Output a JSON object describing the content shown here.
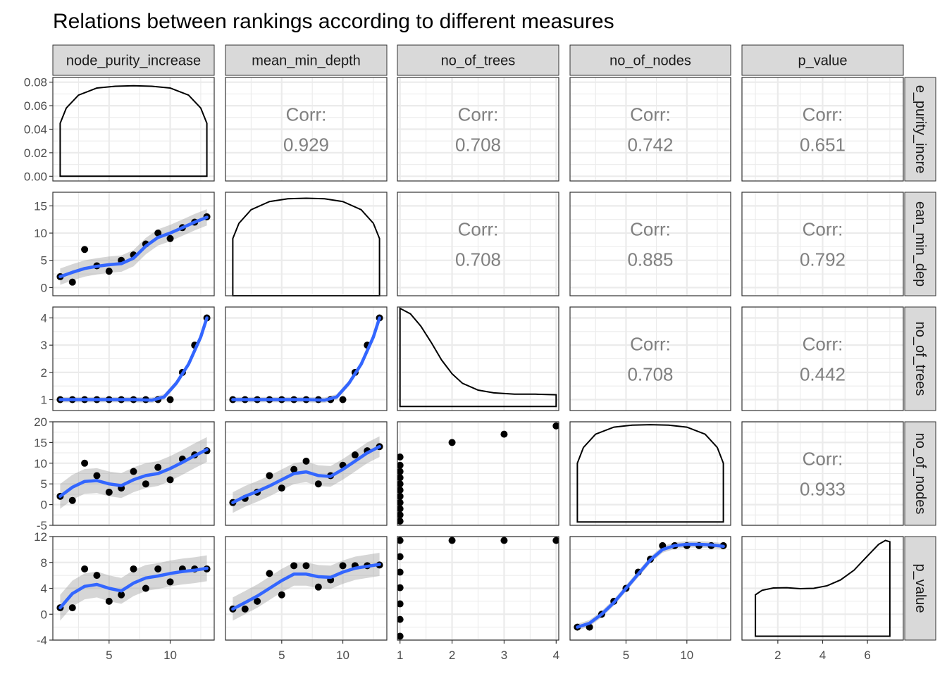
{
  "title": "Relations between rankings according to different measures",
  "chart_data": {
    "type": "scatter",
    "layout": "pairs-matrix",
    "variables": [
      "node_purity_increase",
      "mean_min_depth",
      "no_of_trees",
      "no_of_nodes",
      "p_value"
    ],
    "strip_labels": {
      "columns": [
        "node_purity_increase",
        "mean_min_depth",
        "no_of_trees",
        "no_of_nodes",
        "p_value"
      ],
      "rows": [
        "e_purity_incre",
        "ean_min_dep",
        "no_of_trees",
        "no_of_nodes",
        "p_value"
      ]
    },
    "corr_label": "Corr:",
    "correlations": [
      {
        "row": 0,
        "col": 1,
        "value": "0.929"
      },
      {
        "row": 0,
        "col": 2,
        "value": "0.708"
      },
      {
        "row": 0,
        "col": 3,
        "value": "0.742"
      },
      {
        "row": 0,
        "col": 4,
        "value": "0.651"
      },
      {
        "row": 1,
        "col": 2,
        "value": "0.708"
      },
      {
        "row": 1,
        "col": 3,
        "value": "0.885"
      },
      {
        "row": 1,
        "col": 4,
        "value": "0.792"
      },
      {
        "row": 2,
        "col": 3,
        "value": "0.708"
      },
      {
        "row": 2,
        "col": 4,
        "value": "0.442"
      },
      {
        "row": 3,
        "col": 4,
        "value": "0.933"
      }
    ],
    "x_ranges": [
      [
        0.4,
        13.6
      ],
      [
        0.4,
        13.6
      ],
      [
        0.95,
        4.05
      ],
      [
        0.4,
        13.6
      ],
      [
        0.4,
        7.6
      ]
    ],
    "x_breaks": [
      [
        5,
        10
      ],
      [
        5,
        10
      ],
      [
        1,
        2,
        3,
        4
      ],
      [
        5,
        10
      ],
      [
        2,
        4,
        6
      ]
    ],
    "x_tick_labels": [
      [
        "5",
        "10"
      ],
      [
        "5",
        "10"
      ],
      [
        "1",
        "2",
        "3",
        "4"
      ],
      [
        "5",
        "10"
      ],
      [
        "2",
        "4",
        "6"
      ]
    ],
    "y_ranges": [
      [
        -0.004,
        0.084
      ],
      [
        -1.5,
        17.5
      ],
      [
        0.6,
        4.4
      ],
      [
        -5,
        20
      ],
      [
        -4,
        12
      ]
    ],
    "y_breaks": [
      [
        0,
        0.02,
        0.04,
        0.06,
        0.08
      ],
      [
        0,
        5,
        10,
        15
      ],
      [
        1,
        2,
        3,
        4
      ],
      [
        -5,
        0,
        5,
        10,
        15,
        20
      ],
      [
        -4,
        0,
        4,
        8,
        12
      ]
    ],
    "y_tick_labels": [
      [
        "0.00",
        "0.02",
        "0.04",
        "0.06",
        "0.08"
      ],
      [
        "0",
        "5",
        "10",
        "15"
      ],
      [
        "1",
        "2",
        "3",
        "4"
      ],
      [
        "-5",
        "0",
        "5",
        "10",
        "15",
        "20"
      ],
      [
        "-4",
        "0",
        "4",
        "8",
        "12"
      ]
    ],
    "densities": [
      {
        "var": 0,
        "x": [
          1,
          1.5,
          2.5,
          4,
          5.5,
          7,
          8.5,
          10,
          11.5,
          12.5,
          13
        ],
        "y": [
          0.045,
          0.058,
          0.069,
          0.075,
          0.0765,
          0.077,
          0.0765,
          0.075,
          0.069,
          0.058,
          0.045
        ],
        "baseline": 0
      },
      {
        "var": 1,
        "x": [
          1,
          1.5,
          2.5,
          4,
          5.5,
          7,
          8.5,
          10,
          11.5,
          12.5,
          13
        ],
        "y": [
          9,
          11.8,
          14.3,
          15.8,
          16.3,
          16.4,
          16.3,
          15.8,
          14.3,
          11.8,
          9
        ],
        "baseline": -1.5
      },
      {
        "var": 2,
        "x": [
          1,
          1.2,
          1.4,
          1.6,
          1.8,
          2,
          2.2,
          2.5,
          2.8,
          3.2,
          3.6,
          4
        ],
        "y": [
          4.35,
          4.15,
          3.7,
          3.1,
          2.45,
          1.95,
          1.6,
          1.35,
          1.25,
          1.2,
          1.2,
          1.18
        ],
        "baseline": 0.75
      },
      {
        "var": 3,
        "x": [
          1,
          1.5,
          2.5,
          4,
          5.5,
          7,
          8.5,
          10,
          11.5,
          12.5,
          13
        ],
        "y": [
          10,
          13.8,
          17,
          18.7,
          19.2,
          19.3,
          19.2,
          18.7,
          17,
          13.8,
          10
        ],
        "baseline": -4.2
      },
      {
        "var": 4,
        "x": [
          1,
          1.3,
          1.8,
          2.4,
          3,
          3.6,
          4.2,
          4.8,
          5.4,
          6,
          6.5,
          6.8,
          7
        ],
        "y": [
          3,
          3.7,
          4.05,
          4.1,
          3.95,
          4.0,
          4.4,
          5.3,
          6.8,
          9.0,
          10.8,
          11.4,
          11.2
        ],
        "baseline": -3.4
      }
    ],
    "scatter_panels": [
      {
        "row": 1,
        "col": 0,
        "points": [
          [
            1,
            2
          ],
          [
            2,
            1
          ],
          [
            3,
            7
          ],
          [
            4,
            4
          ],
          [
            5,
            3
          ],
          [
            6,
            5
          ],
          [
            7,
            6
          ],
          [
            8,
            8
          ],
          [
            9,
            10
          ],
          [
            10,
            9
          ],
          [
            11,
            11
          ],
          [
            12,
            12
          ],
          [
            13,
            13
          ]
        ],
        "smooth": [
          [
            1,
            2
          ],
          [
            2,
            2.8
          ],
          [
            3,
            3.5
          ],
          [
            4,
            3.9
          ],
          [
            5,
            4.2
          ],
          [
            6,
            4.4
          ],
          [
            7,
            5.4
          ],
          [
            8,
            7.6
          ],
          [
            9,
            9.2
          ],
          [
            10,
            10
          ],
          [
            11,
            11
          ],
          [
            12,
            12
          ],
          [
            13,
            12.9
          ]
        ],
        "band": 1.5
      },
      {
        "row": 2,
        "col": 0,
        "points": [
          [
            1,
            1
          ],
          [
            2,
            1
          ],
          [
            3,
            1
          ],
          [
            4,
            1
          ],
          [
            5,
            1
          ],
          [
            6,
            1
          ],
          [
            7,
            1
          ],
          [
            8,
            1
          ],
          [
            9,
            1
          ],
          [
            10,
            1
          ],
          [
            11,
            2
          ],
          [
            12,
            3
          ],
          [
            13,
            4
          ]
        ],
        "smooth": [
          [
            1,
            1
          ],
          [
            3,
            1
          ],
          [
            5,
            1
          ],
          [
            7,
            1
          ],
          [
            8.5,
            0.98
          ],
          [
            9.5,
            1.1
          ],
          [
            10.5,
            1.6
          ],
          [
            11.5,
            2.3
          ],
          [
            12.5,
            3.3
          ],
          [
            13,
            4
          ]
        ],
        "band": 0.1
      },
      {
        "row": 2,
        "col": 1,
        "points": [
          [
            1,
            1
          ],
          [
            2,
            1
          ],
          [
            3,
            1
          ],
          [
            4,
            1
          ],
          [
            5,
            1
          ],
          [
            6,
            1
          ],
          [
            7,
            1
          ],
          [
            8,
            1
          ],
          [
            9,
            1
          ],
          [
            10,
            1
          ],
          [
            11,
            2
          ],
          [
            12,
            3
          ],
          [
            13,
            4
          ]
        ],
        "smooth": [
          [
            1,
            1
          ],
          [
            3,
            1
          ],
          [
            5,
            1
          ],
          [
            7,
            1
          ],
          [
            8.5,
            0.98
          ],
          [
            9.5,
            1.1
          ],
          [
            10.5,
            1.6
          ],
          [
            11.5,
            2.3
          ],
          [
            12.5,
            3.3
          ],
          [
            13,
            4
          ]
        ],
        "band": 0.1
      },
      {
        "row": 3,
        "col": 0,
        "points": [
          [
            1,
            2
          ],
          [
            2,
            1
          ],
          [
            3,
            10
          ],
          [
            4,
            7
          ],
          [
            5,
            3
          ],
          [
            6,
            4
          ],
          [
            7,
            8
          ],
          [
            8,
            5
          ],
          [
            9,
            9
          ],
          [
            10,
            6
          ],
          [
            11,
            11
          ],
          [
            12,
            12
          ],
          [
            13,
            13
          ]
        ],
        "smooth": [
          [
            1,
            2
          ],
          [
            2,
            4.2
          ],
          [
            3,
            5.6
          ],
          [
            4,
            5.8
          ],
          [
            5,
            5
          ],
          [
            6,
            4.6
          ],
          [
            7,
            6
          ],
          [
            8,
            7
          ],
          [
            9,
            7.5
          ],
          [
            10,
            8.7
          ],
          [
            11,
            10.2
          ],
          [
            12,
            11.8
          ],
          [
            13,
            13.3
          ]
        ],
        "band": 3
      },
      {
        "row": 3,
        "col": 1,
        "points": [
          [
            1,
            0.5
          ],
          [
            2,
            1.5
          ],
          [
            3,
            3
          ],
          [
            4,
            7
          ],
          [
            5,
            4
          ],
          [
            6,
            8.5
          ],
          [
            7,
            10.5
          ],
          [
            8,
            5
          ],
          [
            9,
            7
          ],
          [
            10,
            9.5
          ],
          [
            11,
            12
          ],
          [
            12,
            13
          ],
          [
            13,
            14
          ]
        ],
        "smooth": [
          [
            1,
            0.5
          ],
          [
            2,
            2
          ],
          [
            3,
            3.2
          ],
          [
            4,
            4.5
          ],
          [
            5,
            6
          ],
          [
            6,
            7.5
          ],
          [
            7,
            7.9
          ],
          [
            8,
            7
          ],
          [
            9,
            6.8
          ],
          [
            10,
            8.5
          ],
          [
            11,
            10.5
          ],
          [
            12,
            12.5
          ],
          [
            13,
            14
          ]
        ],
        "band": 2.5
      },
      {
        "row": 3,
        "col": 2,
        "points": [
          [
            1,
            -4
          ],
          [
            1,
            -2.5
          ],
          [
            1,
            -1
          ],
          [
            1,
            0.5
          ],
          [
            1,
            2
          ],
          [
            1,
            3.5
          ],
          [
            1,
            5
          ],
          [
            1,
            6.5
          ],
          [
            1,
            8
          ],
          [
            1,
            9.5
          ],
          [
            1,
            11.5
          ],
          [
            2,
            15
          ],
          [
            3,
            17
          ],
          [
            4,
            19
          ]
        ],
        "smooth": [],
        "band": 0
      },
      {
        "row": 4,
        "col": 0,
        "points": [
          [
            1,
            1
          ],
          [
            2,
            1
          ],
          [
            3,
            7
          ],
          [
            4,
            6
          ],
          [
            5,
            2
          ],
          [
            6,
            3
          ],
          [
            7,
            7
          ],
          [
            8,
            4
          ],
          [
            9,
            7
          ],
          [
            10,
            5
          ],
          [
            11,
            7
          ],
          [
            12,
            7
          ],
          [
            13,
            7
          ]
        ],
        "smooth": [
          [
            1,
            1
          ],
          [
            2,
            3.2
          ],
          [
            3,
            4.3
          ],
          [
            4,
            4.6
          ],
          [
            5,
            4
          ],
          [
            6,
            3.6
          ],
          [
            7,
            4.8
          ],
          [
            8,
            5.6
          ],
          [
            9,
            5.9
          ],
          [
            10,
            6.3
          ],
          [
            11,
            6.6
          ],
          [
            12,
            6.8
          ],
          [
            13,
            7.1
          ]
        ],
        "band": 2
      },
      {
        "row": 4,
        "col": 1,
        "points": [
          [
            1,
            0.8
          ],
          [
            2,
            0.8
          ],
          [
            3,
            2
          ],
          [
            4,
            6.3
          ],
          [
            5,
            3
          ],
          [
            6,
            7.5
          ],
          [
            7,
            7.5
          ],
          [
            8,
            4.2
          ],
          [
            9,
            5.3
          ],
          [
            10,
            7.5
          ],
          [
            11,
            7.5
          ],
          [
            12,
            7.5
          ],
          [
            13,
            7.6
          ]
        ],
        "smooth": [
          [
            1,
            0.8
          ],
          [
            2,
            1.8
          ],
          [
            3,
            2.8
          ],
          [
            4,
            4
          ],
          [
            5,
            5.2
          ],
          [
            6,
            6.2
          ],
          [
            7,
            6.2
          ],
          [
            8,
            5.8
          ],
          [
            9,
            5.7
          ],
          [
            10,
            6.5
          ],
          [
            11,
            7.1
          ],
          [
            12,
            7.4
          ],
          [
            13,
            7.7
          ]
        ],
        "band": 1.8
      },
      {
        "row": 4,
        "col": 2,
        "points": [
          [
            1,
            -3.4
          ],
          [
            1,
            -0.8
          ],
          [
            1,
            1.6
          ],
          [
            1,
            4.1
          ],
          [
            1,
            6.5
          ],
          [
            1,
            8.9
          ],
          [
            1,
            11.4
          ],
          [
            2,
            11.4
          ],
          [
            3,
            11.4
          ],
          [
            4,
            11.4
          ]
        ],
        "smooth": [],
        "band": 0
      },
      {
        "row": 4,
        "col": 3,
        "points": [
          [
            1,
            -2
          ],
          [
            2,
            -2
          ],
          [
            3,
            0
          ],
          [
            4,
            2
          ],
          [
            5,
            4
          ],
          [
            6,
            6.5
          ],
          [
            7,
            8.5
          ],
          [
            8,
            10.6
          ],
          [
            9,
            10.6
          ],
          [
            10,
            10.6
          ],
          [
            11,
            10.6
          ],
          [
            12,
            10.6
          ],
          [
            13,
            10.6
          ]
        ],
        "smooth": [
          [
            1,
            -2
          ],
          [
            2,
            -1.4
          ],
          [
            3,
            0
          ],
          [
            4,
            1.8
          ],
          [
            5,
            4
          ],
          [
            6,
            6.2
          ],
          [
            7,
            8.4
          ],
          [
            8,
            10
          ],
          [
            9,
            10.6
          ],
          [
            10,
            10.8
          ],
          [
            11,
            10.8
          ],
          [
            12,
            10.7
          ],
          [
            13,
            10.5
          ]
        ],
        "band": 0.5
      }
    ]
  },
  "colors": {
    "smooth": "#3366FF",
    "band": "#999999",
    "point": "#000000",
    "strip_fill": "#D9D9D9",
    "grid": "#EBEBEB",
    "panel_border": "#333333",
    "corr_text": "#808080"
  }
}
